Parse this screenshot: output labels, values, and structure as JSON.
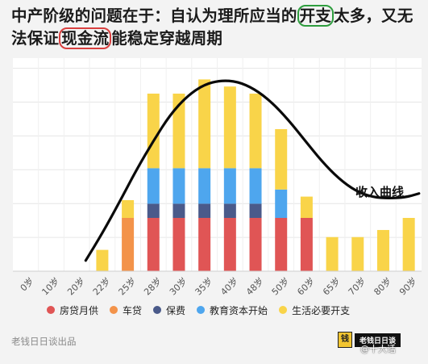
{
  "title": {
    "part1": "中产阶级的问题在于：自认为理所应当的",
    "highlight1": "开支",
    "part2": "太多，又无法保证",
    "highlight2": "现金流",
    "part3": "能稳定穿越周期"
  },
  "chart_data": {
    "type": "bar",
    "stacked": true,
    "categories": [
      "0岁",
      "10岁",
      "20岁",
      "22岁",
      "25岁",
      "28岁",
      "30岁",
      "35岁",
      "40岁",
      "48岁",
      "50岁",
      "60岁",
      "65岁",
      "70岁",
      "80岁",
      "90岁"
    ],
    "series": [
      {
        "name": "房贷月供",
        "color": "#e05555",
        "values": [
          0,
          0,
          0,
          0,
          0,
          7.5,
          7.5,
          7.5,
          7.5,
          7.5,
          7.5,
          7.5,
          0,
          0,
          0,
          0
        ]
      },
      {
        "name": "车贷",
        "color": "#f3934a",
        "values": [
          0,
          0,
          0,
          0,
          7.5,
          0,
          0,
          0,
          0,
          0,
          0,
          0,
          0,
          0,
          0,
          0
        ]
      },
      {
        "name": "保费",
        "color": "#4a5a8a",
        "values": [
          0,
          0,
          0,
          0,
          0,
          2,
          2,
          2,
          2,
          2,
          0,
          0,
          0,
          0,
          0,
          0
        ]
      },
      {
        "name": "教育资本开始",
        "color": "#4ea6ee",
        "values": [
          0,
          0,
          0,
          0,
          0,
          5,
          5,
          5,
          5,
          5,
          4,
          0,
          0,
          0,
          0,
          0
        ]
      },
      {
        "name": "生活必要开支",
        "color": "#f9d449",
        "values": [
          0,
          0,
          0,
          3,
          2.5,
          10.5,
          10.5,
          12.5,
          11.5,
          10.5,
          8.5,
          3,
          4.8,
          4.8,
          5.8,
          7.5
        ]
      }
    ],
    "ylim": [
      0,
      30
    ],
    "grid": true,
    "legend_position": "bottom",
    "annotation": {
      "label": "收入曲线",
      "curve": [
        [
          0.0,
          0
        ],
        [
          0.8,
          4.5
        ],
        [
          1.6,
          9.5
        ],
        [
          2.4,
          14.7
        ],
        [
          3.2,
          19.4
        ],
        [
          4.0,
          23.7
        ],
        [
          4.8,
          26.7
        ],
        [
          5.6,
          28.6
        ],
        [
          6.4,
          29.3
        ],
        [
          7.2,
          29.1
        ],
        [
          8.0,
          27.9
        ],
        [
          8.8,
          25.8
        ],
        [
          9.6,
          22.9
        ],
        [
          10.4,
          19.5
        ],
        [
          11.2,
          16.1
        ],
        [
          12.0,
          13.3
        ],
        [
          12.8,
          11.3
        ],
        [
          13.6,
          10.3
        ],
        [
          14.4,
          10.1
        ],
        [
          15.2,
          10.3
        ],
        [
          15.8,
          10.9
        ]
      ]
    }
  },
  "legend": [
    {
      "label": "房贷月供",
      "color": "#e05555"
    },
    {
      "label": "车贷",
      "color": "#f3934a"
    },
    {
      "label": "保费",
      "color": "#4a5a8a"
    },
    {
      "label": "教育资本开始",
      "color": "#4ea6ee"
    },
    {
      "label": "生活必要开支",
      "color": "#f9d449"
    }
  ],
  "footer": {
    "source": "老钱日日谈出品",
    "badge_icon_text": "钱",
    "badge_name": "老钱日日谈",
    "watermark": "@十大话"
  }
}
